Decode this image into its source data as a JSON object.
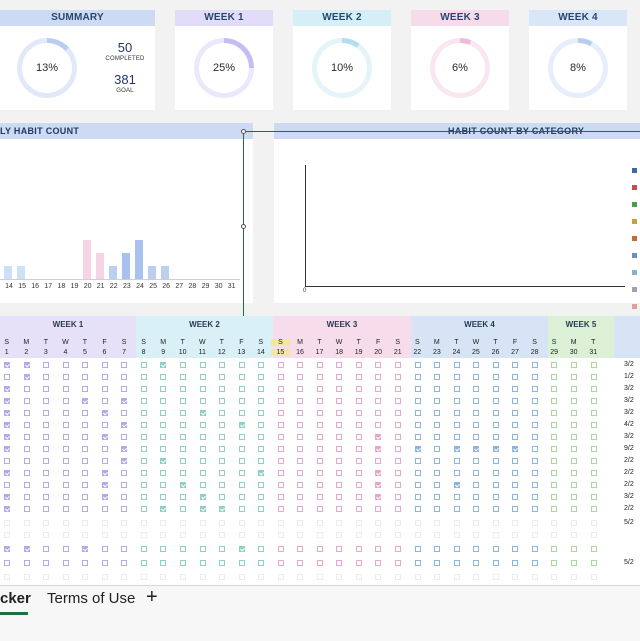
{
  "summary": {
    "title": "SUMMARY",
    "percent": "13%",
    "completed": "50",
    "completed_label": "COMPLETED",
    "goal": "381",
    "goal_label": "GOAL",
    "fraction": 0.13
  },
  "weeks": [
    {
      "title": "WEEK 1",
      "percent": "25%",
      "fraction": 0.25,
      "color": "#e3dcf8",
      "ring": "#c6bdf0",
      "ring_bg": "#ece8fb"
    },
    {
      "title": "WEEK 2",
      "percent": "10%",
      "fraction": 0.1,
      "color": "#d6eff6",
      "ring": "#b2dfec",
      "ring_bg": "#e4f4f9"
    },
    {
      "title": "WEEK 3",
      "percent": "6%",
      "fraction": 0.06,
      "color": "#f6dbeb",
      "ring": "#eebcd9",
      "ring_bg": "#f9e6f1"
    },
    {
      "title": "WEEK 4",
      "percent": "8%",
      "fraction": 0.08,
      "color": "#d9e6f7",
      "ring": "#b7ccee",
      "ring_bg": "#e6eefa"
    }
  ],
  "daily_chart": {
    "title": "LY HABIT COUNT",
    "x_labels": [
      "14",
      "15",
      "16",
      "17",
      "18",
      "19",
      "20",
      "21",
      "22",
      "23",
      "24",
      "25",
      "26",
      "27",
      "28",
      "29",
      "30",
      "31"
    ]
  },
  "category_chart": {
    "title": "HABIT COUNT BY CATEGORY",
    "zero_label": "0",
    "legend_colors": [
      "#3e67a8",
      "#c0504d",
      "#4aa04a",
      "#c7a23a",
      "#c8683a",
      "#6a8dc8",
      "#8ab0d0",
      "#9ca4b0",
      "#e0a0a0"
    ]
  },
  "chart_data": {
    "type": "bar",
    "title": "LY HABIT COUNT",
    "xlabel": "",
    "ylabel": "",
    "categories": [
      "14",
      "15",
      "16",
      "17",
      "18",
      "19",
      "20",
      "21",
      "22",
      "23",
      "24",
      "25",
      "26",
      "27",
      "28",
      "29",
      "30",
      "31"
    ],
    "values": [
      1,
      1,
      0,
      0,
      0,
      0,
      3,
      2,
      1,
      2,
      3,
      1,
      1,
      0,
      0,
      0,
      0,
      0
    ],
    "ylim": [
      0,
      3.5
    ],
    "grid": false
  },
  "tracker": {
    "week_headers": [
      {
        "label": "WEEK 1",
        "color": "#e6e0f8"
      },
      {
        "label": "WEEK 2",
        "color": "#d8f0f6"
      },
      {
        "label": "WEEK 3",
        "color": "#f7dceb"
      },
      {
        "label": "WEEK 4",
        "color": "#d6e4f5"
      },
      {
        "label": "WEEK 5",
        "color": "#dcf0d6"
      }
    ],
    "day_letters": [
      "S",
      "M",
      "T",
      "W",
      "T",
      "F",
      "S",
      "S",
      "M",
      "T",
      "W",
      "T",
      "F",
      "S",
      "S",
      "M",
      "T",
      "W",
      "T",
      "F",
      "S",
      "S",
      "M",
      "T",
      "W",
      "T",
      "F",
      "S",
      "S",
      "M",
      "T"
    ],
    "day_numbers": [
      "1",
      "2",
      "3",
      "4",
      "5",
      "6",
      "7",
      "8",
      "9",
      "10",
      "11",
      "12",
      "13",
      "14",
      "15",
      "16",
      "17",
      "18",
      "19",
      "20",
      "21",
      "22",
      "23",
      "24",
      "25",
      "26",
      "27",
      "28",
      "29",
      "30",
      "31"
    ],
    "right_values": [
      "3/2",
      "1/2",
      "3/2",
      "3/2",
      "3/2",
      "4/2",
      "3/2",
      "9/2",
      "2/2",
      "2/2",
      "2/2",
      "3/2",
      "2/2",
      "5/2",
      "",
      "",
      "5/2",
      "",
      ""
    ]
  },
  "tabs": {
    "active": "cker",
    "terms": "Terms of Use",
    "add": "+"
  }
}
